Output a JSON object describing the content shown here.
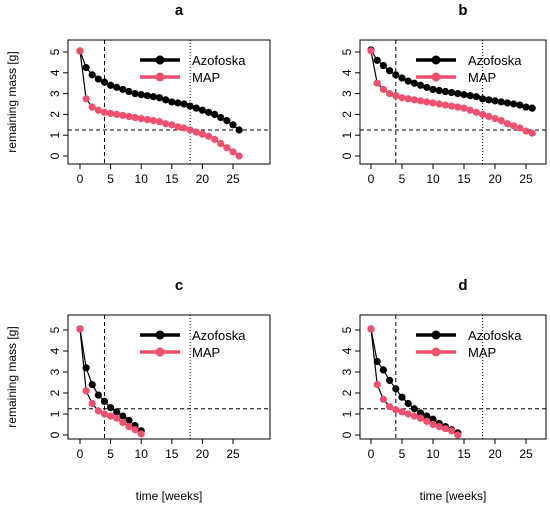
{
  "chart_data": {
    "type": "line",
    "xlabel": "time [weeks]",
    "ylabel": "remaining mass [g]",
    "xlim": [
      0,
      26
    ],
    "ylim": [
      0,
      5
    ],
    "x_ticks": [
      0,
      5,
      10,
      15,
      20,
      25
    ],
    "y_ticks": [
      0,
      1,
      2,
      3,
      4,
      5
    ],
    "legend_position": "top-right",
    "grid": false,
    "colors": {
      "Azofoska": "#000000",
      "MAP": "#f0506e"
    },
    "panels": [
      {
        "title": "a",
        "vline_dashed_x": 4,
        "vline_dotted_x": 18,
        "hline_dashed_y": 1.25,
        "series": [
          {
            "name": "Azofoska",
            "color": "#000000",
            "x": [
              0,
              1,
              2,
              3,
              4,
              5,
              6,
              7,
              8,
              9,
              10,
              11,
              12,
              13,
              14,
              15,
              16,
              17,
              18,
              19,
              20,
              21,
              22,
              23,
              24,
              25,
              26
            ],
            "y": [
              5.05,
              4.25,
              3.9,
              3.7,
              3.55,
              3.4,
              3.3,
              3.2,
              3.1,
              3.0,
              2.95,
              2.9,
              2.85,
              2.8,
              2.7,
              2.6,
              2.55,
              2.5,
              2.4,
              2.3,
              2.2,
              2.1,
              2.0,
              1.85,
              1.7,
              1.5,
              1.25
            ]
          },
          {
            "name": "MAP",
            "color": "#f0506e",
            "x": [
              0,
              1,
              2,
              3,
              4,
              5,
              6,
              7,
              8,
              9,
              10,
              11,
              12,
              13,
              14,
              15,
              16,
              17,
              18,
              19,
              20,
              21,
              22,
              23,
              24,
              25,
              26
            ],
            "y": [
              5.05,
              2.75,
              2.35,
              2.2,
              2.1,
              2.05,
              2.0,
              1.95,
              1.9,
              1.85,
              1.8,
              1.75,
              1.7,
              1.65,
              1.55,
              1.5,
              1.4,
              1.35,
              1.25,
              1.15,
              1.05,
              0.95,
              0.8,
              0.6,
              0.4,
              0.2,
              0.0
            ]
          }
        ]
      },
      {
        "title": "b",
        "vline_dashed_x": 4,
        "vline_dotted_x": 18,
        "hline_dashed_y": 1.25,
        "series": [
          {
            "name": "Azofoska",
            "color": "#000000",
            "x": [
              0,
              1,
              2,
              3,
              4,
              5,
              6,
              7,
              8,
              9,
              10,
              11,
              12,
              13,
              14,
              15,
              16,
              17,
              18,
              19,
              20,
              21,
              22,
              23,
              24,
              25,
              26
            ],
            "y": [
              5.1,
              4.6,
              4.35,
              4.1,
              3.9,
              3.75,
              3.6,
              3.5,
              3.4,
              3.3,
              3.2,
              3.15,
              3.1,
              3.05,
              3.0,
              2.95,
              2.9,
              2.85,
              2.75,
              2.7,
              2.65,
              2.6,
              2.55,
              2.5,
              2.45,
              2.35,
              2.3
            ]
          },
          {
            "name": "MAP",
            "color": "#f0506e",
            "x": [
              0,
              1,
              2,
              3,
              4,
              5,
              6,
              7,
              8,
              9,
              10,
              11,
              12,
              13,
              14,
              15,
              16,
              17,
              18,
              19,
              20,
              21,
              22,
              23,
              24,
              25,
              26
            ],
            "y": [
              5.05,
              3.5,
              3.2,
              3.0,
              2.9,
              2.8,
              2.75,
              2.7,
              2.65,
              2.6,
              2.55,
              2.5,
              2.45,
              2.4,
              2.35,
              2.3,
              2.2,
              2.1,
              2.0,
              1.9,
              1.8,
              1.7,
              1.55,
              1.45,
              1.35,
              1.2,
              1.1
            ]
          }
        ]
      },
      {
        "title": "c",
        "vline_dashed_x": 4,
        "vline_dotted_x": 18,
        "hline_dashed_y": 1.25,
        "series": [
          {
            "name": "Azofoska",
            "color": "#000000",
            "x": [
              0,
              1,
              2,
              3,
              4,
              5,
              6,
              7,
              8,
              9,
              10
            ],
            "y": [
              5.05,
              3.2,
              2.4,
              1.9,
              1.6,
              1.3,
              1.1,
              0.9,
              0.7,
              0.45,
              0.2
            ]
          },
          {
            "name": "MAP",
            "color": "#f0506e",
            "x": [
              0,
              1,
              2,
              3,
              4,
              5,
              6,
              7,
              8,
              9,
              10
            ],
            "y": [
              5.05,
              2.1,
              1.5,
              1.15,
              1.0,
              0.9,
              0.8,
              0.6,
              0.4,
              0.25,
              0.05
            ]
          }
        ]
      },
      {
        "title": "d",
        "vline_dashed_x": 4,
        "vline_dotted_x": 18,
        "hline_dashed_y": 1.25,
        "series": [
          {
            "name": "Azofoska",
            "color": "#000000",
            "x": [
              0,
              1,
              2,
              3,
              4,
              5,
              6,
              7,
              8,
              9,
              10,
              11,
              12,
              13,
              14
            ],
            "y": [
              5.05,
              3.5,
              3.1,
              2.6,
              2.2,
              1.8,
              1.5,
              1.25,
              1.05,
              0.9,
              0.75,
              0.55,
              0.4,
              0.25,
              0.1
            ]
          },
          {
            "name": "MAP",
            "color": "#f0506e",
            "x": [
              0,
              1,
              2,
              3,
              4,
              5,
              6,
              7,
              8,
              9,
              10,
              11,
              12,
              13,
              14
            ],
            "y": [
              5.05,
              2.4,
              1.7,
              1.35,
              1.2,
              1.1,
              1.0,
              0.9,
              0.8,
              0.65,
              0.5,
              0.4,
              0.3,
              0.2,
              0.0
            ]
          }
        ]
      }
    ]
  }
}
